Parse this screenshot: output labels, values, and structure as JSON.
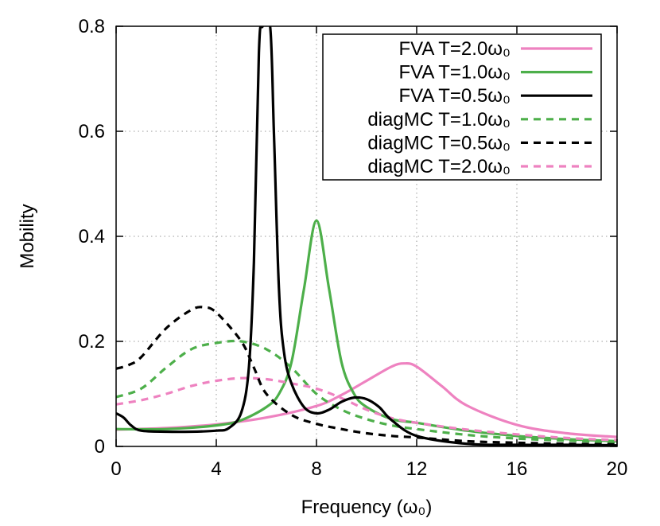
{
  "chart_data": {
    "type": "line",
    "title": "",
    "xlabel": "Frequency (ω₀)",
    "ylabel": "Mobility",
    "xlim": [
      0,
      20
    ],
    "ylim": [
      0,
      0.8
    ],
    "xticks": [
      "0",
      "4",
      "8",
      "12",
      "16",
      "20"
    ],
    "yticks": [
      "0",
      "0.2",
      "0.4",
      "0.6",
      "0.8"
    ],
    "grid": true,
    "legend_position": "top-right",
    "series": [
      {
        "name": "FVA T=2.0ω₀",
        "color": "#ee82c0",
        "dash": "solid",
        "x": [
          0,
          2,
          4,
          6,
          8,
          9,
          10,
          11,
          11.5,
          12,
          13,
          14,
          16,
          18,
          20
        ],
        "y": [
          0.032,
          0.035,
          0.042,
          0.055,
          0.077,
          0.098,
          0.125,
          0.152,
          0.158,
          0.152,
          0.115,
          0.078,
          0.041,
          0.025,
          0.018
        ]
      },
      {
        "name": "FVA T=1.0ω₀",
        "color": "#4daf4a",
        "dash": "solid",
        "x": [
          0,
          2,
          4,
          5,
          6,
          6.5,
          7,
          7.5,
          8,
          8.5,
          9,
          9.5,
          10,
          11,
          12,
          14,
          16,
          18,
          20
        ],
        "y": [
          0.033,
          0.033,
          0.04,
          0.05,
          0.075,
          0.1,
          0.16,
          0.3,
          0.43,
          0.3,
          0.16,
          0.1,
          0.075,
          0.052,
          0.045,
          0.03,
          0.02,
          0.014,
          0.01
        ]
      },
      {
        "name": "FVA T=0.5ω₀",
        "color": "#000000",
        "dash": "solid",
        "x": [
          0,
          0.3,
          0.6,
          1,
          2,
          3,
          4,
          4.5,
          5,
          5.3,
          5.5,
          5.7,
          5.85,
          6.15,
          6.3,
          6.5,
          6.7,
          7,
          7.5,
          8,
          8.5,
          9,
          9.5,
          10,
          10.5,
          11,
          12,
          14,
          16,
          18,
          20
        ],
        "y": [
          0.063,
          0.055,
          0.04,
          0.03,
          0.028,
          0.028,
          0.03,
          0.035,
          0.065,
          0.15,
          0.35,
          0.75,
          0.8,
          0.8,
          0.6,
          0.3,
          0.18,
          0.12,
          0.075,
          0.063,
          0.07,
          0.085,
          0.093,
          0.09,
          0.075,
          0.05,
          0.02,
          0.005,
          0.003,
          0.003,
          0.002
        ]
      },
      {
        "name": "diagMC T=1.0ω₀",
        "color": "#4daf4a",
        "dash": "dash",
        "x": [
          0,
          1,
          2,
          3,
          4,
          5,
          6,
          7,
          8,
          9,
          10,
          11,
          12,
          14,
          16,
          18,
          20
        ],
        "y": [
          0.094,
          0.11,
          0.15,
          0.185,
          0.197,
          0.2,
          0.185,
          0.15,
          0.1,
          0.07,
          0.052,
          0.04,
          0.033,
          0.022,
          0.015,
          0.011,
          0.008
        ]
      },
      {
        "name": "diagMC T=0.5ω₀",
        "color": "#000000",
        "dash": "dash",
        "x": [
          0,
          0.5,
          1,
          2,
          3,
          3.5,
          4,
          5,
          5.5,
          6,
          7,
          8,
          9,
          10,
          11,
          12,
          14,
          16,
          18,
          20
        ],
        "y": [
          0.148,
          0.155,
          0.17,
          0.225,
          0.26,
          0.265,
          0.255,
          0.2,
          0.15,
          0.1,
          0.06,
          0.043,
          0.033,
          0.025,
          0.02,
          0.017,
          0.01,
          0.007,
          0.005,
          0.004
        ]
      },
      {
        "name": "diagMC T=2.0ω₀",
        "color": "#ee82c0",
        "dash": "dash",
        "x": [
          0,
          1,
          2,
          3,
          4,
          5,
          6,
          7,
          8,
          9,
          10,
          11,
          12,
          14,
          16,
          18,
          20
        ],
        "y": [
          0.08,
          0.088,
          0.1,
          0.115,
          0.125,
          0.13,
          0.128,
          0.12,
          0.11,
          0.092,
          0.07,
          0.054,
          0.045,
          0.032,
          0.023,
          0.016,
          0.012
        ]
      }
    ]
  }
}
